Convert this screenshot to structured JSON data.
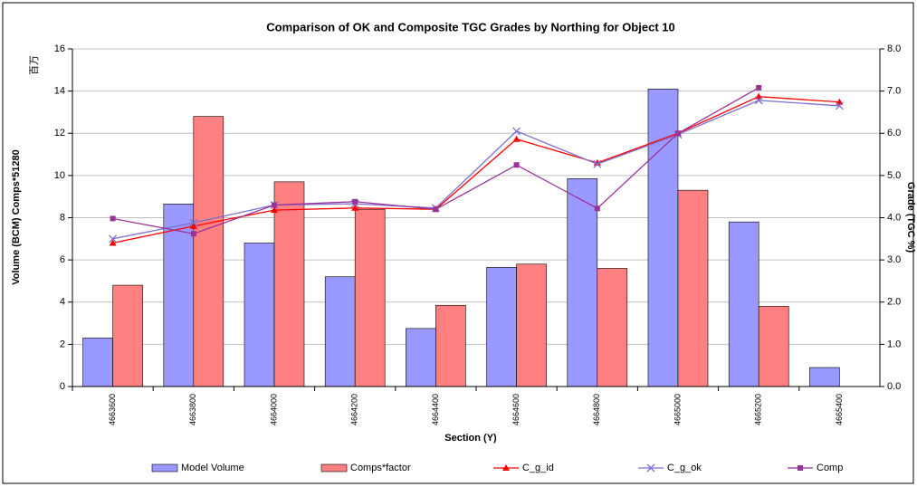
{
  "chart_data": {
    "type": "bar_line",
    "title": "Comparison of OK and Composite TGC Grades by Northing for Object 10",
    "x_label": "Section (Y)",
    "y_label": "Volume (BCM) Comps*51280",
    "y_unit_label": "百万",
    "y2_label": "Grade (TGC %)",
    "categories": [
      "4663600",
      "4663800",
      "4664000",
      "4664200",
      "4664400",
      "4664600",
      "4664800",
      "4665000",
      "4665200",
      "4665400"
    ],
    "ylim": [
      0,
      16
    ],
    "yticks": [
      0,
      2,
      4,
      6,
      8,
      10,
      12,
      14,
      16
    ],
    "y2lim": [
      0,
      8
    ],
    "y2ticks": [
      {
        "value": 0,
        "label": "0.0"
      },
      {
        "value": 1,
        "label": "1.0"
      },
      {
        "value": 2,
        "label": "2.0"
      },
      {
        "value": 3,
        "label": "3.0"
      },
      {
        "value": 4,
        "label": "4.0"
      },
      {
        "value": 5,
        "label": "5.0"
      },
      {
        "value": 6,
        "label": "6.0"
      },
      {
        "value": 7,
        "label": "7.0"
      },
      {
        "value": 8,
        "label": "8.0"
      }
    ],
    "grid": true,
    "legend": "bottom",
    "series": [
      {
        "name": "Model Volume",
        "kind": "bar",
        "color": "#9999ff",
        "values": [
          2.3,
          8.65,
          6.8,
          5.2,
          2.75,
          5.65,
          9.85,
          14.1,
          7.8,
          0.9
        ]
      },
      {
        "name": "Comps*factor",
        "kind": "bar",
        "color": "#ff8080",
        "values": [
          4.8,
          12.8,
          9.7,
          8.4,
          3.85,
          5.8,
          5.6,
          9.3,
          3.8,
          null
        ]
      },
      {
        "name": "C_g_id",
        "kind": "line",
        "marker": "triangle",
        "axis": "y2",
        "color": "#ff0000",
        "values": [
          3.4,
          3.8,
          4.18,
          4.23,
          4.2,
          5.86,
          5.3,
          6.0,
          6.87,
          6.74
        ]
      },
      {
        "name": "C_g_ok",
        "kind": "line",
        "marker": "x",
        "axis": "y2",
        "color": "#7f6fd0",
        "values": [
          3.5,
          3.88,
          4.3,
          4.33,
          4.23,
          6.05,
          5.27,
          5.97,
          6.78,
          6.65
        ]
      },
      {
        "name": "Comp",
        "kind": "line",
        "marker": "square",
        "axis": "y2",
        "color": "#993399",
        "values": [
          3.98,
          3.62,
          4.3,
          4.38,
          4.2,
          5.25,
          4.22,
          6.0,
          7.08,
          null
        ]
      }
    ]
  }
}
